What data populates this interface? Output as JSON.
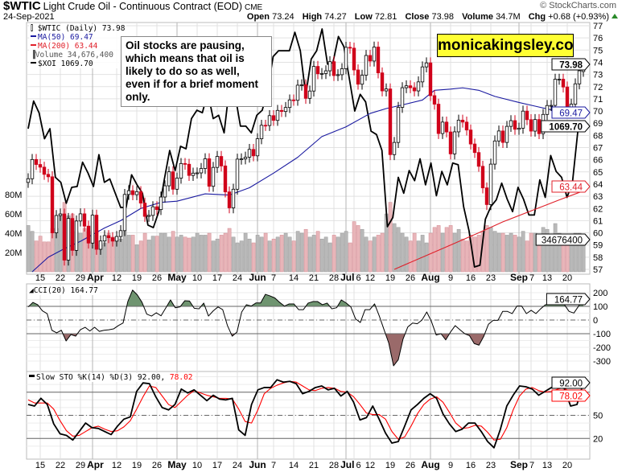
{
  "header": {
    "symbol": "$WTIC",
    "description": "Light Crude Oil - Continuous Contract (EOD)",
    "exchange": "CME",
    "date": "24-Sep-2021",
    "watermark": "© StockCharts.com",
    "stats": [
      {
        "label": "Open",
        "value": "73.24"
      },
      {
        "label": "High",
        "value": "74.27"
      },
      {
        "label": "Low",
        "value": "72.81"
      },
      {
        "label": "Close",
        "value": "73.98"
      },
      {
        "label": "Volume",
        "value": "34.7M"
      },
      {
        "label": "Chg",
        "value": "+0.68 (+0.93%)"
      }
    ],
    "change_direction": "up"
  },
  "legend": {
    "price": "$WTIC (Daily) 73.98",
    "ma50": "MA(50) 69.47",
    "ma200": "MA(200) 63.44",
    "volume": "Volume 34,676,400",
    "xoi": "$XOI 1069.70"
  },
  "annotation": "Oil stocks are pausing, which means that oil is likely to do so as well, even if for a brief moment only.",
  "brand": "monicakingsley.co",
  "colors": {
    "up_fill": "#ffffff",
    "down_fill": "#d0021b",
    "ma50": "#1a1aa0",
    "ma200": "#e0202a",
    "xoi": "#000000",
    "vol_up": "#b9b9b9",
    "vol_down": "#e8b5b9",
    "cci_pos": "#6f9470",
    "cci_neg": "#9a6a6a",
    "sto_k": "#000000",
    "sto_d": "#ff0000"
  },
  "chart_data": {
    "type": "candlestick",
    "title": "$WTIC Light Crude Oil - Continuous Contract (EOD)",
    "price_axis": {
      "range": [
        57,
        77
      ],
      "ticks": [
        57,
        58,
        59,
        60,
        61,
        62,
        63,
        64,
        65,
        66,
        67,
        68,
        69,
        70,
        71,
        72,
        73,
        74,
        75,
        76,
        77
      ]
    },
    "volume_axis": {
      "ticks": [
        "20M",
        "40M",
        "60M",
        "80M"
      ],
      "tick_values": [
        20,
        40,
        60,
        80
      ]
    },
    "x_ticks": [
      {
        "label": "15",
        "date": "03-15"
      },
      {
        "label": "22",
        "date": "03-22"
      },
      {
        "label": "29",
        "date": "03-29"
      },
      {
        "label": "Apr",
        "date": "04-01",
        "bold": true
      },
      {
        "label": "12",
        "date": "04-12"
      },
      {
        "label": "19",
        "date": "04-19"
      },
      {
        "label": "26",
        "date": "04-26"
      },
      {
        "label": "May",
        "date": "05-03",
        "bold": true
      },
      {
        "label": "10",
        "date": "05-10"
      },
      {
        "label": "17",
        "date": "05-17"
      },
      {
        "label": "24",
        "date": "05-24"
      },
      {
        "label": "Jun",
        "date": "06-01",
        "bold": true
      },
      {
        "label": "7",
        "date": "06-07"
      },
      {
        "label": "14",
        "date": "06-14"
      },
      {
        "label": "21",
        "date": "06-21"
      },
      {
        "label": "28",
        "date": "06-28"
      },
      {
        "label": "Jul",
        "date": "07-01",
        "bold": true
      },
      {
        "label": "6",
        "date": "07-06"
      },
      {
        "label": "12",
        "date": "07-12"
      },
      {
        "label": "19",
        "date": "07-19"
      },
      {
        "label": "26",
        "date": "07-26"
      },
      {
        "label": "Aug",
        "date": "08-02",
        "bold": true
      },
      {
        "label": "9",
        "date": "08-09"
      },
      {
        "label": "16",
        "date": "08-16"
      },
      {
        "label": "23",
        "date": "08-23"
      },
      {
        "label": "Sep",
        "date": "09-01",
        "bold": true
      },
      {
        "label": "7",
        "date": "09-07"
      },
      {
        "label": "13",
        "date": "09-13"
      },
      {
        "label": "20",
        "date": "09-20"
      }
    ],
    "dates": [
      "03-10",
      "03-11",
      "03-12",
      "03-15",
      "03-16",
      "03-17",
      "03-18",
      "03-19",
      "03-22",
      "03-23",
      "03-24",
      "03-25",
      "03-26",
      "03-29",
      "03-30",
      "03-31",
      "04-01",
      "04-05",
      "04-06",
      "04-07",
      "04-08",
      "04-09",
      "04-12",
      "04-13",
      "04-14",
      "04-15",
      "04-16",
      "04-19",
      "04-20",
      "04-21",
      "04-22",
      "04-23",
      "04-26",
      "04-27",
      "04-28",
      "04-29",
      "04-30",
      "05-03",
      "05-04",
      "05-05",
      "05-06",
      "05-07",
      "05-10",
      "05-11",
      "05-12",
      "05-13",
      "05-14",
      "05-17",
      "05-18",
      "05-19",
      "05-20",
      "05-21",
      "05-24",
      "05-25",
      "05-26",
      "05-27",
      "05-28",
      "06-01",
      "06-02",
      "06-03",
      "06-04",
      "06-07",
      "06-08",
      "06-09",
      "06-10",
      "06-11",
      "06-14",
      "06-15",
      "06-16",
      "06-17",
      "06-18",
      "06-21",
      "06-22",
      "06-23",
      "06-24",
      "06-25",
      "06-28",
      "06-29",
      "06-30",
      "07-01",
      "07-02",
      "07-06",
      "07-07",
      "07-08",
      "07-09",
      "07-12",
      "07-13",
      "07-14",
      "07-15",
      "07-16",
      "07-19",
      "07-20",
      "07-21",
      "07-22",
      "07-23",
      "07-26",
      "07-27",
      "07-28",
      "07-29",
      "07-30",
      "08-02",
      "08-03",
      "08-04",
      "08-05",
      "08-06",
      "08-09",
      "08-10",
      "08-11",
      "08-12",
      "08-13",
      "08-16",
      "08-17",
      "08-18",
      "08-19",
      "08-20",
      "08-23",
      "08-24",
      "08-25",
      "08-26",
      "08-27",
      "08-30",
      "08-31",
      "09-01",
      "09-02",
      "09-03",
      "09-07",
      "09-08",
      "09-09",
      "09-10",
      "09-13",
      "09-14",
      "09-15",
      "09-16",
      "09-17",
      "09-20",
      "09-21",
      "09-22",
      "09-23",
      "09-24"
    ],
    "close": [
      64.44,
      66.02,
      65.61,
      65.39,
      64.8,
      64.6,
      60.0,
      61.42,
      61.55,
      57.76,
      61.18,
      58.56,
      60.97,
      61.56,
      60.55,
      59.16,
      61.45,
      58.65,
      59.33,
      59.77,
      59.6,
      59.32,
      59.7,
      60.18,
      63.15,
      63.46,
      63.13,
      63.38,
      62.44,
      61.35,
      61.43,
      62.14,
      61.91,
      62.94,
      63.86,
      65.01,
      63.58,
      64.49,
      65.69,
      65.63,
      64.71,
      64.9,
      64.92,
      65.28,
      66.08,
      63.82,
      65.37,
      66.27,
      65.49,
      63.36,
      62.05,
      63.58,
      66.05,
      66.07,
      66.21,
      66.85,
      66.32,
      67.72,
      68.83,
      68.81,
      69.62,
      69.23,
      70.05,
      69.96,
      70.29,
      70.91,
      70.88,
      72.12,
      72.15,
      71.04,
      71.64,
      73.66,
      73.06,
      73.08,
      73.3,
      74.05,
      72.91,
      72.98,
      73.47,
      75.23,
      75.16,
      73.37,
      72.2,
      72.94,
      74.56,
      74.1,
      75.25,
      73.13,
      71.65,
      71.81,
      66.42,
      67.42,
      70.3,
      71.91,
      72.07,
      71.91,
      71.65,
      72.39,
      73.62,
      73.95,
      71.26,
      70.56,
      68.15,
      69.09,
      68.28,
      66.48,
      68.29,
      69.25,
      69.09,
      68.44,
      67.29,
      66.59,
      65.46,
      63.69,
      62.32,
      65.64,
      67.54,
      68.36,
      67.42,
      68.74,
      69.21,
      68.5,
      68.59,
      69.99,
      69.29,
      68.35,
      69.3,
      68.14,
      69.72,
      70.45,
      70.46,
      72.61,
      72.61,
      71.97,
      70.29,
      70.56,
      72.23,
      73.3,
      73.98
    ],
    "last": {
      "open": 73.24,
      "high": 74.27,
      "low": 72.81,
      "close": 73.98
    },
    "volume_millions": [
      48,
      42,
      32,
      37,
      31,
      31,
      45,
      45,
      60,
      72,
      58,
      60,
      42,
      40,
      45,
      42,
      38,
      43,
      28,
      30,
      40,
      36,
      36,
      34,
      42,
      38,
      38,
      28,
      32,
      40,
      33,
      37,
      37,
      40,
      40,
      36,
      42,
      36,
      38,
      36,
      35,
      36,
      40,
      38,
      38,
      40,
      32,
      34,
      38,
      40,
      45,
      36,
      30,
      32,
      40,
      34,
      30,
      38,
      36,
      40,
      32,
      34,
      36,
      38,
      40,
      36,
      32,
      42,
      40,
      44,
      36,
      38,
      42,
      34,
      36,
      30,
      38,
      36,
      40,
      42,
      30,
      52,
      48,
      44,
      36,
      32,
      36,
      38,
      40,
      60,
      72,
      50,
      46,
      40,
      36,
      32,
      40,
      32,
      38,
      30,
      40,
      46,
      48,
      40,
      46,
      48,
      40,
      44,
      34,
      32,
      38,
      36,
      38,
      42,
      48,
      46,
      42,
      40,
      40,
      38,
      40,
      38,
      36,
      42,
      32,
      40,
      40,
      34,
      46,
      44,
      36,
      50,
      40,
      38,
      30,
      38,
      40,
      40,
      34.7
    ],
    "ma50": [
      [
        "03-11",
        56.8
      ],
      [
        "03-17",
        58.0
      ],
      [
        "03-23",
        58.7
      ],
      [
        "03-29",
        59.3
      ],
      [
        "04-07",
        60.4
      ],
      [
        "04-13",
        61.0
      ],
      [
        "04-20",
        62.0
      ],
      [
        "04-27",
        62.5
      ],
      [
        "05-03",
        62.6
      ],
      [
        "05-12",
        63.2
      ],
      [
        "05-20",
        63.1
      ],
      [
        "05-27",
        63.7
      ],
      [
        "06-07",
        64.9
      ],
      [
        "06-15",
        66.2
      ],
      [
        "06-23",
        67.9
      ],
      [
        "07-01",
        68.7
      ],
      [
        "07-12",
        69.8
      ],
      [
        "07-16",
        70.2
      ],
      [
        "07-22",
        70.5
      ],
      [
        "07-29",
        70.9
      ],
      [
        "08-03",
        71.7
      ],
      [
        "08-09",
        71.8
      ],
      [
        "08-12",
        71.9
      ],
      [
        "08-18",
        71.7
      ],
      [
        "08-24",
        71.2
      ],
      [
        "09-01",
        70.7
      ],
      [
        "09-08",
        70.4
      ],
      [
        "09-14",
        70.1
      ],
      [
        "09-20",
        69.9
      ],
      [
        "09-24",
        69.47
      ]
    ],
    "ma200": [
      [
        "07-20",
        57.0
      ],
      [
        "07-29",
        58.0
      ],
      [
        "08-09",
        59.0
      ],
      [
        "08-18",
        60.0
      ],
      [
        "08-26",
        60.9
      ],
      [
        "09-07",
        61.8
      ],
      [
        "09-16",
        62.7
      ],
      [
        "09-24",
        63.44
      ]
    ],
    "xoi": {
      "last": 1069.7,
      "values": [
        1065,
        1098,
        1084,
        1053,
        1065,
        1007,
        1001,
        976,
        995,
        996,
        1025,
        1012,
        996,
        1034,
        1001,
        1005,
        988,
        971,
        971,
        1010,
        998,
        988,
        950,
        947,
        966,
        1004,
        1039,
        1015,
        1044,
        1041,
        1077,
        1087,
        1084,
        1108,
        1077,
        1081,
        1060,
        1116,
        1106,
        1068,
        1068,
        1060,
        1081,
        1087,
        1110,
        1151,
        1158,
        1158,
        1158,
        1180,
        1158,
        1105,
        1148,
        1158,
        1184,
        1142,
        1144,
        1175,
        1163,
        1125,
        1086,
        1106,
        1097,
        1062,
        1058,
        1039,
        948,
        959,
        1007,
        988,
        1015,
        1003,
        1029,
        998,
        1024,
        985,
        1014,
        998,
        1024,
        1022,
        972,
        943,
        900,
        902,
        957,
        972,
        980,
        1000,
        981,
        966,
        995,
        981,
        962,
        962,
        1004,
        983,
        1033,
        1014,
        1007,
        983,
        1001,
        1063,
        1069.7
      ]
    },
    "cci": {
      "name": "CCI(20)",
      "last": 164.77,
      "ticks": [
        200,
        100,
        0,
        -100,
        -200,
        -300
      ],
      "values": [
        96,
        129,
        112,
        67,
        47,
        -75,
        -94,
        -75,
        -153,
        -106,
        -118,
        -71,
        -53,
        -80,
        -53,
        -83,
        -75,
        -71,
        -65,
        -41,
        -22,
        135,
        219,
        184,
        129,
        43,
        29,
        53,
        31,
        88,
        147,
        90,
        96,
        141,
        139,
        86,
        82,
        124,
        29,
        67,
        96,
        76,
        -41,
        -118,
        -88,
        59,
        112,
        102,
        125,
        125,
        188,
        176,
        161,
        129,
        102,
        118,
        118,
        76,
        76,
        124,
        135,
        135,
        112,
        124,
        82,
        90,
        147,
        125,
        96,
        8,
        -18,
        76,
        76,
        118,
        29,
        -71,
        -169,
        -335,
        -290,
        -139,
        -51,
        -22,
        -27,
        0,
        59,
        -12,
        -110,
        -100,
        -145,
        -88,
        -41,
        -71,
        -100,
        -114,
        -172,
        -184,
        -120,
        -31,
        -2,
        -2,
        63,
        63,
        47,
        102,
        102,
        47,
        71,
        47,
        82,
        112,
        112,
        155,
        155,
        112,
        63,
        51,
        102,
        164.77
      ]
    },
    "stochastic": {
      "name": "Slow STO %K(14) %D(3)",
      "k_last": "92.00",
      "d_last": "78.02",
      "ticks": [
        50,
        20
      ],
      "levels": [
        80,
        50,
        20
      ],
      "k": [
        64,
        62,
        72,
        64,
        39,
        26,
        24,
        18,
        29,
        40,
        34,
        33,
        29,
        25,
        36,
        45,
        48,
        81,
        92,
        91,
        74,
        60,
        57,
        64,
        84,
        79,
        83,
        76,
        69,
        76,
        71,
        70,
        72,
        31,
        24,
        64,
        83,
        86,
        86,
        96,
        93,
        94,
        91,
        78,
        81,
        86,
        88,
        83,
        85,
        75,
        81,
        67,
        44,
        47,
        62,
        45,
        27,
        14,
        16,
        36,
        57,
        64,
        72,
        78,
        72,
        52,
        39,
        29,
        32,
        40,
        40,
        29,
        16,
        8,
        32,
        62,
        76,
        88,
        87,
        84,
        76,
        81,
        86,
        86,
        85,
        62,
        64,
        92
      ],
      "d": [
        70,
        66,
        66,
        66,
        58,
        43,
        30,
        23,
        24,
        29,
        34,
        36,
        32,
        29,
        30,
        35,
        43,
        58,
        74,
        88,
        86,
        75,
        64,
        60,
        68,
        76,
        82,
        79,
        76,
        74,
        72,
        72,
        71,
        58,
        42,
        40,
        57,
        78,
        85,
        89,
        92,
        94,
        93,
        88,
        83,
        82,
        85,
        86,
        85,
        81,
        80,
        74,
        64,
        53,
        51,
        51,
        45,
        29,
        19,
        22,
        36,
        52,
        64,
        71,
        74,
        67,
        54,
        40,
        33,
        34,
        37,
        36,
        28,
        18,
        19,
        34,
        57,
        75,
        84,
        86,
        82,
        80,
        81,
        84,
        86,
        78,
        70,
        78.02
      ]
    },
    "value_labels": {
      "price": "73.98",
      "ma50": "69.47",
      "xoi": "1069.70",
      "ma200": "63.44",
      "volume": "34676400",
      "cci": "164.77",
      "k": "92.00",
      "d": "78.02"
    }
  }
}
